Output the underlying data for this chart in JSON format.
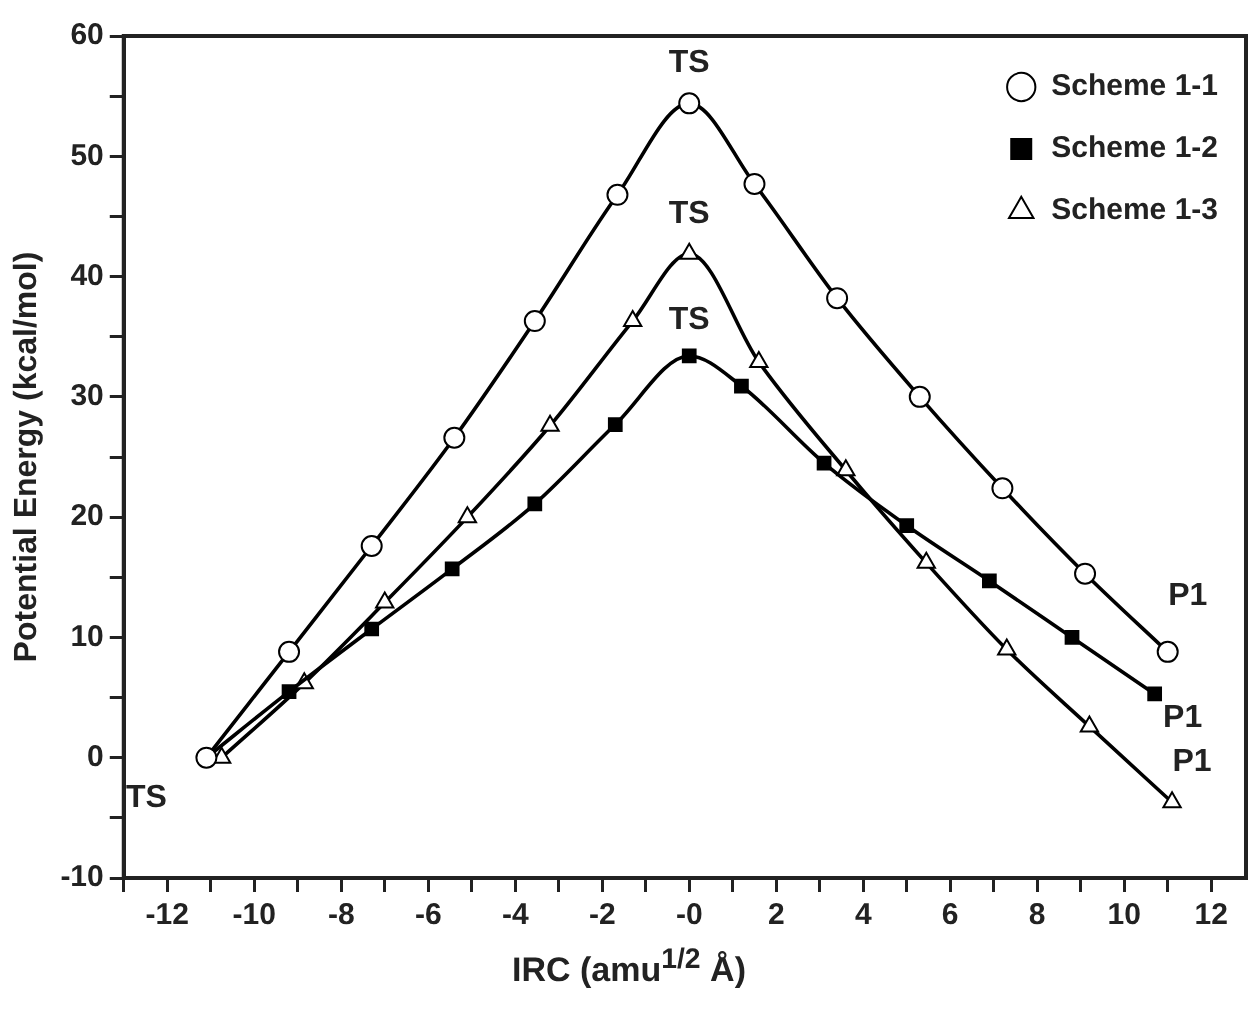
{
  "chart_data": {
    "type": "line",
    "xlabel": "IRC (amu$^{1/2}$ Å)",
    "ylabel": "Potential Energy (kcal/mol)",
    "xlim": [
      -13,
      12.8
    ],
    "ylim": [
      -10,
      60
    ],
    "xticks": [
      {
        "value": -13,
        "label": null
      },
      -12,
      {
        "value": -11,
        "label": null
      },
      -10,
      {
        "value": -9,
        "label": null
      },
      -8,
      {
        "value": -7,
        "label": null
      },
      -6,
      {
        "value": -5,
        "label": null
      },
      -4,
      {
        "value": -3,
        "label": null
      },
      -2,
      {
        "value": -1,
        "label": null
      },
      {
        "value": 0,
        "label": "-0"
      },
      {
        "value": 1,
        "label": null
      },
      2,
      {
        "value": 3,
        "label": null
      },
      4,
      {
        "value": 5,
        "label": null
      },
      6,
      {
        "value": 7,
        "label": null
      },
      8,
      {
        "value": 9,
        "label": null
      },
      10,
      {
        "value": 11,
        "label": null
      },
      12
    ],
    "yticks": [
      -10,
      {
        "value": -5,
        "label": null
      },
      0,
      {
        "value": 5,
        "label": null
      },
      10,
      {
        "value": 15,
        "label": null
      },
      20,
      {
        "value": 25,
        "label": null
      },
      30,
      {
        "value": 35,
        "label": null
      },
      40,
      {
        "value": 45,
        "label": null
      },
      50,
      {
        "value": 55,
        "label": null
      },
      60
    ],
    "grid": false,
    "legend": "top right",
    "series": [
      {
        "name": "Scheme 1-1",
        "color": "#000000",
        "marker": "circle",
        "x": [
          -11.1,
          -9.2,
          -7.3,
          -5.4,
          -3.55,
          -1.65,
          0,
          1.5,
          3.4,
          5.3,
          7.2,
          9.1,
          11.0
        ],
        "values": [
          0,
          8.8,
          17.6,
          26.6,
          36.3,
          46.8,
          54.4,
          47.7,
          38.2,
          30.0,
          22.4,
          15.3,
          8.8
        ]
      },
      {
        "name": "Scheme 1-2",
        "color": "#000000",
        "marker": "square",
        "x": [
          -11.1,
          -9.2,
          -7.3,
          -5.45,
          -3.55,
          -1.7,
          0,
          1.2,
          3.1,
          5.0,
          6.9,
          8.8,
          10.7
        ],
        "values": [
          0,
          5.5,
          10.7,
          15.7,
          21.1,
          27.7,
          33.4,
          30.9,
          24.5,
          19.3,
          14.7,
          10.0,
          5.3
        ]
      },
      {
        "name": "Scheme 1-3",
        "color": "#000000",
        "marker": "triangle",
        "x": [
          -10.75,
          -8.85,
          -7.0,
          -5.1,
          -3.2,
          -1.3,
          0,
          1.6,
          3.6,
          5.45,
          7.3,
          9.2,
          11.1
        ],
        "values": [
          0,
          6.2,
          12.9,
          20.0,
          27.6,
          36.3,
          41.9,
          32.9,
          23.9,
          16.2,
          9.0,
          2.6,
          -3.7
        ]
      }
    ],
    "annotations": [
      {
        "text": "TS",
        "x": -11.1,
        "y": 0
      },
      {
        "text": "TS",
        "x": 0,
        "y": 54.4
      },
      {
        "text": "TS",
        "x": 0,
        "y": 41.9
      },
      {
        "text": "TS",
        "x": 0,
        "y": 33.4
      },
      {
        "text": "P1",
        "x": 11.0,
        "y": 8.8
      },
      {
        "text": "P1",
        "x": 10.7,
        "y": 5.3
      },
      {
        "text": "P1",
        "x": 11.1,
        "y": -3.7
      }
    ]
  }
}
